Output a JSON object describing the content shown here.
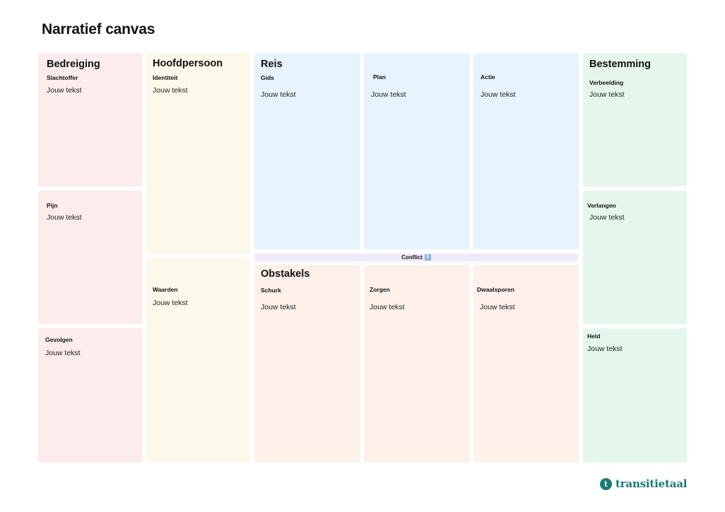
{
  "page_title": "Narratief canvas",
  "placeholder_text": "Jouw tekst",
  "columns": {
    "bedreiging": {
      "title": "Bedreiging",
      "slachtoffer": "Slachtoffer",
      "pijn": "Pijn",
      "gevolgen": "Gevolgen"
    },
    "hoofdpersoon": {
      "title": "Hoofdpersoon",
      "identiteit": "Identiteit",
      "waarden": "Waarden"
    },
    "reis": {
      "title": "Reis",
      "gids": "Gids",
      "plan": "Plan",
      "actie": "Actie"
    },
    "conflict": {
      "label": "Conflict",
      "icon": "up-down-arrow-icon"
    },
    "obstakels": {
      "title": "Obstakels",
      "schurk": "Schurk",
      "zorgen": "Zorgen",
      "dwaalsporen": "Dwaalsporen"
    },
    "bestemming": {
      "title": "Bestemming",
      "verbeelding": "Verbeelding",
      "verlangen": "Verlangen",
      "held": "Held"
    }
  },
  "brand": {
    "name": "transitietaal",
    "mark": "t",
    "color": "#1b7a73"
  },
  "colors": {
    "bedreiging": "#fdecec",
    "hoofdpersoon": "#fdf9ea",
    "reis": "#e7f4fd",
    "obstakels": "#fdf1ea",
    "bestemming": "#e5f6ec",
    "conflict": "#efebfb"
  }
}
